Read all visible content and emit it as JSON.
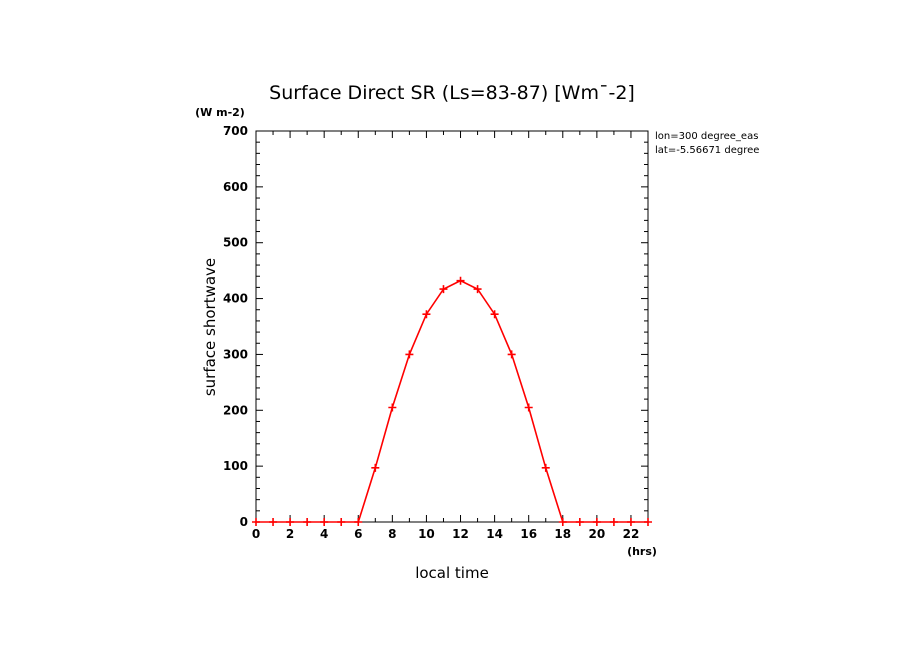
{
  "chart_data": {
    "type": "line",
    "title": "Surface Direct SR (Ls=83-87) [Wm¯-2]",
    "xlabel": "local time",
    "ylabel": "surface shortwave",
    "x_unit": "(hrs)",
    "y_unit": "(W m-2)",
    "xlim": [
      0,
      23
    ],
    "ylim": [
      0,
      700
    ],
    "x_ticks": [
      0,
      2,
      4,
      6,
      8,
      10,
      12,
      14,
      16,
      18,
      20,
      22
    ],
    "y_ticks": [
      0,
      100,
      200,
      300,
      400,
      500,
      600,
      700
    ],
    "grid": false,
    "annotations": [
      "lon=300 degree_eas",
      "lat=-5.56671 degree"
    ],
    "series": [
      {
        "color": "#ff0000",
        "marker": "plus",
        "x": [
          0,
          1,
          2,
          3,
          4,
          5,
          6,
          7,
          8,
          9,
          10,
          11,
          12,
          13,
          14,
          15,
          16,
          17,
          18,
          19,
          20,
          21,
          22,
          23
        ],
        "y": [
          0,
          0,
          0,
          0,
          0,
          0,
          0,
          97,
          205,
          300,
          372,
          417,
          432,
          417,
          372,
          300,
          205,
          97,
          0,
          0,
          0,
          0,
          0,
          0
        ]
      }
    ]
  }
}
